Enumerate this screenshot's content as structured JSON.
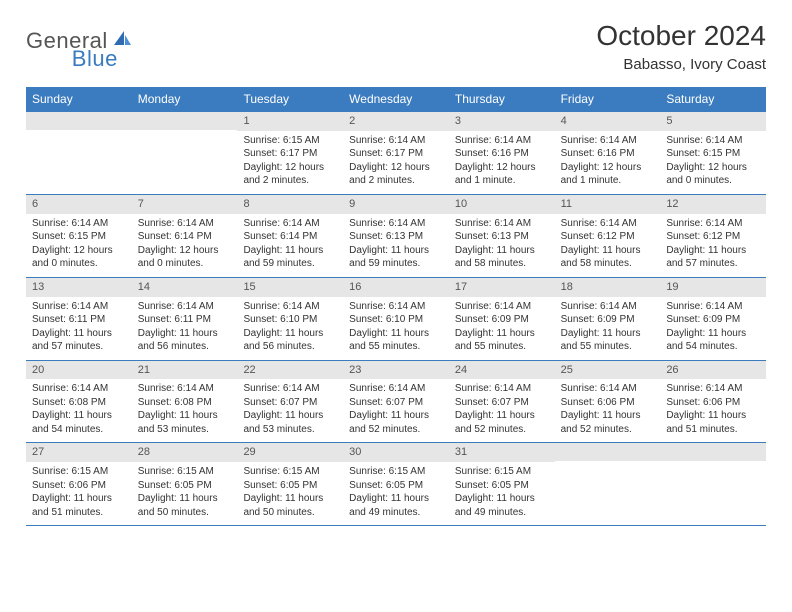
{
  "brand": {
    "part1": "General",
    "part2": "Blue"
  },
  "title": "October 2024",
  "location": "Babasso, Ivory Coast",
  "weekdays": [
    "Sunday",
    "Monday",
    "Tuesday",
    "Wednesday",
    "Thursday",
    "Friday",
    "Saturday"
  ],
  "colors": {
    "header_bg": "#3b7bbf",
    "daybar_bg": "#e6e6e6",
    "text": "#333333",
    "logo_gray": "#555555",
    "logo_blue": "#3b7bbf"
  },
  "weeks": [
    [
      {
        "n": "",
        "sunrise": "",
        "sunset": "",
        "daylight": ""
      },
      {
        "n": "",
        "sunrise": "",
        "sunset": "",
        "daylight": ""
      },
      {
        "n": "1",
        "sunrise": "Sunrise: 6:15 AM",
        "sunset": "Sunset: 6:17 PM",
        "daylight": "Daylight: 12 hours and 2 minutes."
      },
      {
        "n": "2",
        "sunrise": "Sunrise: 6:14 AM",
        "sunset": "Sunset: 6:17 PM",
        "daylight": "Daylight: 12 hours and 2 minutes."
      },
      {
        "n": "3",
        "sunrise": "Sunrise: 6:14 AM",
        "sunset": "Sunset: 6:16 PM",
        "daylight": "Daylight: 12 hours and 1 minute."
      },
      {
        "n": "4",
        "sunrise": "Sunrise: 6:14 AM",
        "sunset": "Sunset: 6:16 PM",
        "daylight": "Daylight: 12 hours and 1 minute."
      },
      {
        "n": "5",
        "sunrise": "Sunrise: 6:14 AM",
        "sunset": "Sunset: 6:15 PM",
        "daylight": "Daylight: 12 hours and 0 minutes."
      }
    ],
    [
      {
        "n": "6",
        "sunrise": "Sunrise: 6:14 AM",
        "sunset": "Sunset: 6:15 PM",
        "daylight": "Daylight: 12 hours and 0 minutes."
      },
      {
        "n": "7",
        "sunrise": "Sunrise: 6:14 AM",
        "sunset": "Sunset: 6:14 PM",
        "daylight": "Daylight: 12 hours and 0 minutes."
      },
      {
        "n": "8",
        "sunrise": "Sunrise: 6:14 AM",
        "sunset": "Sunset: 6:14 PM",
        "daylight": "Daylight: 11 hours and 59 minutes."
      },
      {
        "n": "9",
        "sunrise": "Sunrise: 6:14 AM",
        "sunset": "Sunset: 6:13 PM",
        "daylight": "Daylight: 11 hours and 59 minutes."
      },
      {
        "n": "10",
        "sunrise": "Sunrise: 6:14 AM",
        "sunset": "Sunset: 6:13 PM",
        "daylight": "Daylight: 11 hours and 58 minutes."
      },
      {
        "n": "11",
        "sunrise": "Sunrise: 6:14 AM",
        "sunset": "Sunset: 6:12 PM",
        "daylight": "Daylight: 11 hours and 58 minutes."
      },
      {
        "n": "12",
        "sunrise": "Sunrise: 6:14 AM",
        "sunset": "Sunset: 6:12 PM",
        "daylight": "Daylight: 11 hours and 57 minutes."
      }
    ],
    [
      {
        "n": "13",
        "sunrise": "Sunrise: 6:14 AM",
        "sunset": "Sunset: 6:11 PM",
        "daylight": "Daylight: 11 hours and 57 minutes."
      },
      {
        "n": "14",
        "sunrise": "Sunrise: 6:14 AM",
        "sunset": "Sunset: 6:11 PM",
        "daylight": "Daylight: 11 hours and 56 minutes."
      },
      {
        "n": "15",
        "sunrise": "Sunrise: 6:14 AM",
        "sunset": "Sunset: 6:10 PM",
        "daylight": "Daylight: 11 hours and 56 minutes."
      },
      {
        "n": "16",
        "sunrise": "Sunrise: 6:14 AM",
        "sunset": "Sunset: 6:10 PM",
        "daylight": "Daylight: 11 hours and 55 minutes."
      },
      {
        "n": "17",
        "sunrise": "Sunrise: 6:14 AM",
        "sunset": "Sunset: 6:09 PM",
        "daylight": "Daylight: 11 hours and 55 minutes."
      },
      {
        "n": "18",
        "sunrise": "Sunrise: 6:14 AM",
        "sunset": "Sunset: 6:09 PM",
        "daylight": "Daylight: 11 hours and 55 minutes."
      },
      {
        "n": "19",
        "sunrise": "Sunrise: 6:14 AM",
        "sunset": "Sunset: 6:09 PM",
        "daylight": "Daylight: 11 hours and 54 minutes."
      }
    ],
    [
      {
        "n": "20",
        "sunrise": "Sunrise: 6:14 AM",
        "sunset": "Sunset: 6:08 PM",
        "daylight": "Daylight: 11 hours and 54 minutes."
      },
      {
        "n": "21",
        "sunrise": "Sunrise: 6:14 AM",
        "sunset": "Sunset: 6:08 PM",
        "daylight": "Daylight: 11 hours and 53 minutes."
      },
      {
        "n": "22",
        "sunrise": "Sunrise: 6:14 AM",
        "sunset": "Sunset: 6:07 PM",
        "daylight": "Daylight: 11 hours and 53 minutes."
      },
      {
        "n": "23",
        "sunrise": "Sunrise: 6:14 AM",
        "sunset": "Sunset: 6:07 PM",
        "daylight": "Daylight: 11 hours and 52 minutes."
      },
      {
        "n": "24",
        "sunrise": "Sunrise: 6:14 AM",
        "sunset": "Sunset: 6:07 PM",
        "daylight": "Daylight: 11 hours and 52 minutes."
      },
      {
        "n": "25",
        "sunrise": "Sunrise: 6:14 AM",
        "sunset": "Sunset: 6:06 PM",
        "daylight": "Daylight: 11 hours and 52 minutes."
      },
      {
        "n": "26",
        "sunrise": "Sunrise: 6:14 AM",
        "sunset": "Sunset: 6:06 PM",
        "daylight": "Daylight: 11 hours and 51 minutes."
      }
    ],
    [
      {
        "n": "27",
        "sunrise": "Sunrise: 6:15 AM",
        "sunset": "Sunset: 6:06 PM",
        "daylight": "Daylight: 11 hours and 51 minutes."
      },
      {
        "n": "28",
        "sunrise": "Sunrise: 6:15 AM",
        "sunset": "Sunset: 6:05 PM",
        "daylight": "Daylight: 11 hours and 50 minutes."
      },
      {
        "n": "29",
        "sunrise": "Sunrise: 6:15 AM",
        "sunset": "Sunset: 6:05 PM",
        "daylight": "Daylight: 11 hours and 50 minutes."
      },
      {
        "n": "30",
        "sunrise": "Sunrise: 6:15 AM",
        "sunset": "Sunset: 6:05 PM",
        "daylight": "Daylight: 11 hours and 49 minutes."
      },
      {
        "n": "31",
        "sunrise": "Sunrise: 6:15 AM",
        "sunset": "Sunset: 6:05 PM",
        "daylight": "Daylight: 11 hours and 49 minutes."
      },
      {
        "n": "",
        "sunrise": "",
        "sunset": "",
        "daylight": ""
      },
      {
        "n": "",
        "sunrise": "",
        "sunset": "",
        "daylight": ""
      }
    ]
  ]
}
